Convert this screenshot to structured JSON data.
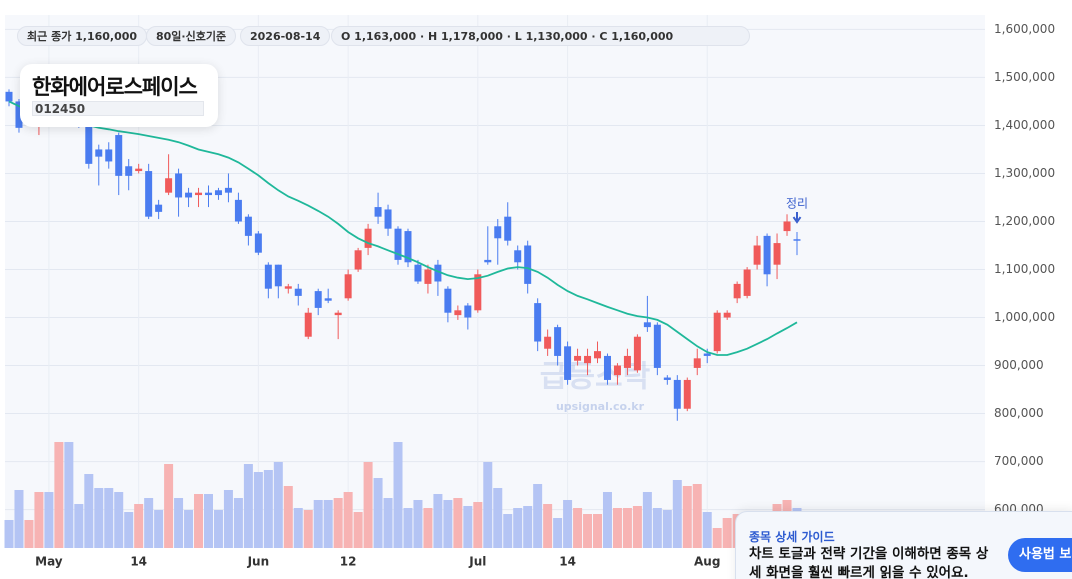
{
  "header": {
    "chips": [
      "최근 종가 1,160,000",
      "80일·신호기준",
      "2026-08-14",
      "O 1,163,000 · H 1,178,000 · L 1,130,000 · C 1,160,000"
    ],
    "stock_name": "한화에어로스페이스",
    "stock_code": "012450"
  },
  "watermark": {
    "title": "급등스탁",
    "url": "upsignal.co.kr"
  },
  "guide": {
    "title": "종목 상세 가이드",
    "text": "차트 토글과 전략 기간을 이해하면 종목 상세 화면을 훨씬 빠르게 읽을 수 있어요.",
    "button": "사용법 보기"
  },
  "chart_data": {
    "type": "candlestick",
    "up_color": "#f05a5a",
    "down_color": "#4a7cf0",
    "up_volume_color": "#f7b3b3",
    "down_volume_color": "#b4c4f4",
    "ma_color": "#1fb89a",
    "ylim": [
      520000,
      1630000
    ],
    "yticks": [
      {
        "value": 600000,
        "label": "600,000"
      },
      {
        "value": 700000,
        "label": "700,000"
      },
      {
        "value": 800000,
        "label": "800,000"
      },
      {
        "value": 900000,
        "label": "900,000"
      },
      {
        "value": 1000000,
        "label": "1,000,000"
      },
      {
        "value": 1100000,
        "label": "1,100,000"
      },
      {
        "value": 1200000,
        "label": "1,200,000"
      },
      {
        "value": 1300000,
        "label": "1,300,000"
      },
      {
        "value": 1400000,
        "label": "1,400,000"
      },
      {
        "value": 1500000,
        "label": "1,500,000"
      },
      {
        "value": 1600000,
        "label": "1,600,000"
      }
    ],
    "xticks": [
      {
        "value": 4,
        "label": "May"
      },
      {
        "value": 13,
        "label": "14"
      },
      {
        "value": 25,
        "label": "Jun"
      },
      {
        "value": 34,
        "label": "12"
      },
      {
        "value": 47,
        "label": "Jul"
      },
      {
        "value": 56,
        "label": "14"
      },
      {
        "value": 70,
        "label": "Aug"
      }
    ],
    "grid": true,
    "candles": {
      "open": [
        1470000,
        1450000,
        1420000,
        1415000,
        1425000,
        1420000,
        1425000,
        1415000,
        1405000,
        1350000,
        1350000,
        1380000,
        1315000,
        1305000,
        1305000,
        1235000,
        1260000,
        1300000,
        1260000,
        1255000,
        1260000,
        1265000,
        1270000,
        1245000,
        1210000,
        1175000,
        1110000,
        1110000,
        1060000,
        1060000,
        960000,
        1055000,
        1040000,
        1005000,
        1040000,
        1100000,
        1145000,
        1230000,
        1225000,
        1185000,
        1180000,
        1110000,
        1070000,
        1110000,
        1060000,
        1005000,
        1025000,
        1015000,
        1120000,
        1190000,
        1210000,
        1140000,
        1150000,
        1030000,
        935000,
        980000,
        940000,
        910000,
        905000,
        915000,
        920000,
        880000,
        895000,
        890000,
        990000,
        985000,
        875000,
        870000,
        810000,
        895000,
        925000,
        930000,
        1000000,
        1040000,
        1045000,
        1110000,
        1170000,
        1110000,
        1180000,
        1163000
      ],
      "high": [
        1475000,
        1455000,
        1430000,
        1425000,
        1435000,
        1440000,
        1430000,
        1420000,
        1410000,
        1360000,
        1365000,
        1385000,
        1330000,
        1320000,
        1320000,
        1245000,
        1340000,
        1310000,
        1270000,
        1270000,
        1275000,
        1270000,
        1300000,
        1260000,
        1215000,
        1180000,
        1115000,
        1110000,
        1070000,
        1070000,
        1020000,
        1060000,
        1060000,
        1015000,
        1100000,
        1145000,
        1195000,
        1260000,
        1235000,
        1190000,
        1185000,
        1120000,
        1110000,
        1120000,
        1065000,
        1025000,
        1030000,
        1100000,
        1190000,
        1205000,
        1240000,
        1150000,
        1160000,
        1040000,
        975000,
        985000,
        950000,
        935000,
        935000,
        950000,
        925000,
        905000,
        935000,
        965000,
        1045000,
        990000,
        880000,
        880000,
        875000,
        935000,
        935000,
        1015000,
        1015000,
        1075000,
        1105000,
        1170000,
        1175000,
        1175000,
        1215000,
        1178000
      ],
      "low": [
        1440000,
        1385000,
        1405000,
        1380000,
        1400000,
        1410000,
        1400000,
        1395000,
        1310000,
        1275000,
        1310000,
        1255000,
        1265000,
        1300000,
        1205000,
        1205000,
        1255000,
        1210000,
        1230000,
        1230000,
        1230000,
        1245000,
        1240000,
        1195000,
        1150000,
        1130000,
        1040000,
        1040000,
        1050000,
        1025000,
        955000,
        1005000,
        1030000,
        955000,
        1035000,
        1095000,
        1130000,
        1195000,
        1170000,
        1110000,
        1105000,
        1070000,
        1050000,
        1045000,
        990000,
        995000,
        975000,
        1010000,
        1110000,
        1110000,
        1150000,
        1100000,
        1050000,
        930000,
        920000,
        900000,
        860000,
        900000,
        880000,
        905000,
        860000,
        860000,
        880000,
        885000,
        970000,
        880000,
        860000,
        785000,
        805000,
        880000,
        905000,
        925000,
        995000,
        1030000,
        1040000,
        1100000,
        1065000,
        1080000,
        1170000,
        1130000
      ],
      "close": [
        1450000,
        1395000,
        1425000,
        1420000,
        1420000,
        1430000,
        1415000,
        1405000,
        1320000,
        1335000,
        1325000,
        1295000,
        1295000,
        1310000,
        1210000,
        1220000,
        1290000,
        1250000,
        1250000,
        1260000,
        1255000,
        1255000,
        1260000,
        1200000,
        1170000,
        1135000,
        1060000,
        1065000,
        1065000,
        1045000,
        1010000,
        1020000,
        1035000,
        1010000,
        1090000,
        1140000,
        1185000,
        1210000,
        1185000,
        1120000,
        1115000,
        1075000,
        1100000,
        1075000,
        1010000,
        1015000,
        1000000,
        1090000,
        1115000,
        1165000,
        1160000,
        1115000,
        1070000,
        950000,
        960000,
        920000,
        870000,
        920000,
        920000,
        930000,
        870000,
        900000,
        920000,
        960000,
        980000,
        895000,
        870000,
        810000,
        870000,
        915000,
        920000,
        1010000,
        1010000,
        1070000,
        1100000,
        1150000,
        1090000,
        1155000,
        1200000,
        1160000
      ]
    },
    "volume": [
      28,
      58,
      28,
      56,
      56,
      106,
      106,
      44,
      74,
      60,
      60,
      56,
      36,
      44,
      50,
      38,
      84,
      50,
      38,
      54,
      54,
      38,
      58,
      50,
      84,
      76,
      78,
      86,
      62,
      40,
      38,
      48,
      48,
      50,
      56,
      36,
      86,
      70,
      50,
      106,
      40,
      48,
      40,
      54,
      48,
      50,
      42,
      46,
      86,
      60,
      34,
      40,
      42,
      64,
      44,
      30,
      48,
      40,
      34,
      34,
      56,
      40,
      40,
      42,
      56,
      40,
      38,
      68,
      62,
      64,
      36,
      20,
      30,
      34,
      28,
      36,
      32,
      44,
      48,
      40
    ],
    "ma": [
      1450000,
      1440000,
      1432000,
      1425000,
      1420000,
      1415000,
      1410000,
      1405000,
      1400000,
      1395000,
      1392000,
      1388000,
      1385000,
      1382000,
      1378000,
      1374000,
      1370000,
      1365000,
      1358000,
      1350000,
      1345000,
      1340000,
      1333000,
      1323000,
      1310000,
      1296000,
      1280000,
      1265000,
      1252000,
      1243000,
      1233000,
      1222000,
      1210000,
      1195000,
      1178000,
      1165000,
      1155000,
      1148000,
      1140000,
      1132000,
      1124000,
      1115000,
      1105000,
      1096000,
      1088000,
      1083000,
      1080000,
      1082000,
      1087000,
      1095000,
      1102000,
      1105000,
      1103000,
      1095000,
      1083000,
      1068000,
      1055000,
      1045000,
      1038000,
      1030000,
      1022000,
      1015000,
      1008000,
      1003000,
      1000000,
      995000,
      985000,
      970000,
      955000,
      940000,
      928000,
      922000,
      922000,
      928000,
      935000,
      945000,
      955000,
      967000,
      978000,
      990000
    ],
    "annotations": [
      {
        "index": 79,
        "text": "정리"
      }
    ]
  }
}
